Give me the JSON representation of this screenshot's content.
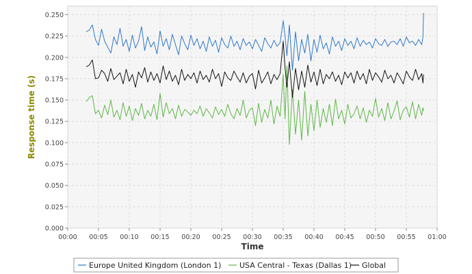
{
  "chart_data": {
    "type": "line",
    "xlabel": "Time",
    "ylabel": "Response time (s)",
    "xlim": [
      0,
      60
    ],
    "ylim": [
      0,
      0.26
    ],
    "grid": true,
    "legend_position": "bottom",
    "x_ticks": [
      0,
      5,
      10,
      15,
      20,
      25,
      30,
      35,
      40,
      45,
      50,
      55,
      60
    ],
    "x_tick_labels": [
      "00:00",
      "00:05",
      "00:10",
      "00:15",
      "00:20",
      "00:25",
      "00:30",
      "00:35",
      "00:40",
      "00:45",
      "00:50",
      "00:55",
      "01:00"
    ],
    "y_ticks": [
      0,
      0.025,
      0.05,
      0.075,
      0.1,
      0.125,
      0.15,
      0.175,
      0.2,
      0.225,
      0.25
    ],
    "y_tick_labels": [
      "0.000",
      "0.025",
      "0.050",
      "0.075",
      "0.100",
      "0.125",
      "0.150",
      "0.175",
      "0.200",
      "0.225",
      "0.250"
    ],
    "colors": {
      "ylabel": "#8b8b00",
      "xlabel": "#333333"
    },
    "series": [
      {
        "name": "Europe United Kingdom (London 1)",
        "color": "#2f78c8",
        "x": [
          3.0,
          3.5,
          4.0,
          4.5,
          5.0,
          5.5,
          6.0,
          6.5,
          7.0,
          7.5,
          8.0,
          8.5,
          9.0,
          9.5,
          10.0,
          10.5,
          11.0,
          11.5,
          12.0,
          12.5,
          13.0,
          13.5,
          14.0,
          14.5,
          15.0,
          15.5,
          16.0,
          16.5,
          17.0,
          17.5,
          18.0,
          18.5,
          19.0,
          19.5,
          20.0,
          20.5,
          21.0,
          21.5,
          22.0,
          22.5,
          23.0,
          23.5,
          24.0,
          24.5,
          25.0,
          25.5,
          26.0,
          26.5,
          27.0,
          27.5,
          28.0,
          28.5,
          29.0,
          29.5,
          30.0,
          30.5,
          31.0,
          31.5,
          32.0,
          32.5,
          33.0,
          33.5,
          34.0,
          34.5,
          35.0,
          35.3,
          35.6,
          36.0,
          36.5,
          37.0,
          37.5,
          38.0,
          38.5,
          39.0,
          39.5,
          40.0,
          40.5,
          41.0,
          41.5,
          42.0,
          42.5,
          43.0,
          43.5,
          44.0,
          44.5,
          45.0,
          45.5,
          46.0,
          46.5,
          47.0,
          47.5,
          48.0,
          48.5,
          49.0,
          49.5,
          50.0,
          50.5,
          51.0,
          51.5,
          52.0,
          52.5,
          53.0,
          53.5,
          54.0,
          54.5,
          55.0,
          55.5,
          56.0,
          56.5,
          57.0,
          57.5,
          57.7,
          57.8
        ],
        "y": [
          0.23,
          0.232,
          0.238,
          0.221,
          0.214,
          0.233,
          0.219,
          0.212,
          0.205,
          0.224,
          0.215,
          0.234,
          0.213,
          0.221,
          0.207,
          0.226,
          0.211,
          0.219,
          0.236,
          0.208,
          0.224,
          0.212,
          0.218,
          0.204,
          0.231,
          0.213,
          0.222,
          0.209,
          0.227,
          0.215,
          0.203,
          0.225,
          0.216,
          0.209,
          0.226,
          0.214,
          0.222,
          0.21,
          0.219,
          0.207,
          0.224,
          0.213,
          0.22,
          0.206,
          0.223,
          0.215,
          0.211,
          0.225,
          0.213,
          0.219,
          0.209,
          0.222,
          0.214,
          0.218,
          0.21,
          0.221,
          0.214,
          0.207,
          0.223,
          0.216,
          0.211,
          0.22,
          0.213,
          0.217,
          0.243,
          0.225,
          0.202,
          0.238,
          0.185,
          0.23,
          0.196,
          0.221,
          0.205,
          0.227,
          0.196,
          0.221,
          0.206,
          0.226,
          0.21,
          0.217,
          0.204,
          0.224,
          0.213,
          0.219,
          0.208,
          0.222,
          0.214,
          0.219,
          0.21,
          0.223,
          0.213,
          0.22,
          0.215,
          0.218,
          0.211,
          0.222,
          0.216,
          0.214,
          0.221,
          0.213,
          0.218,
          0.219,
          0.215,
          0.222,
          0.213,
          0.224,
          0.217,
          0.219,
          0.214,
          0.221,
          0.215,
          0.224,
          0.252
        ]
      },
      {
        "name": "USA Central - Texas (Dallas 1)",
        "color": "#5db646",
        "x": [
          3.0,
          3.5,
          4.0,
          4.5,
          5.0,
          5.5,
          6.0,
          6.5,
          7.0,
          7.5,
          8.0,
          8.5,
          9.0,
          9.5,
          10.0,
          10.5,
          11.0,
          11.5,
          12.0,
          12.5,
          13.0,
          13.5,
          14.0,
          14.5,
          15.0,
          15.5,
          16.0,
          16.5,
          17.0,
          17.5,
          18.0,
          18.5,
          19.0,
          19.5,
          20.0,
          20.5,
          21.0,
          21.5,
          22.0,
          22.5,
          23.0,
          23.5,
          24.0,
          24.5,
          25.0,
          25.5,
          26.0,
          26.5,
          27.0,
          27.5,
          28.0,
          28.5,
          29.0,
          29.5,
          30.0,
          30.5,
          31.0,
          31.5,
          32.0,
          32.5,
          33.0,
          33.5,
          34.0,
          34.5,
          35.0,
          35.3,
          35.6,
          36.0,
          36.5,
          37.0,
          37.5,
          38.0,
          38.5,
          39.0,
          39.5,
          40.0,
          40.5,
          41.0,
          41.5,
          42.0,
          42.5,
          43.0,
          43.5,
          44.0,
          44.5,
          45.0,
          45.5,
          46.0,
          46.5,
          47.0,
          47.5,
          48.0,
          48.5,
          49.0,
          49.5,
          50.0,
          50.5,
          51.0,
          51.5,
          52.0,
          52.5,
          53.0,
          53.5,
          54.0,
          54.5,
          55.0,
          55.5,
          56.0,
          56.5,
          57.0,
          57.5,
          57.7,
          57.8
        ],
        "y": [
          0.148,
          0.153,
          0.155,
          0.134,
          0.138,
          0.129,
          0.144,
          0.133,
          0.15,
          0.13,
          0.138,
          0.127,
          0.147,
          0.131,
          0.143,
          0.126,
          0.14,
          0.132,
          0.146,
          0.128,
          0.138,
          0.131,
          0.145,
          0.127,
          0.158,
          0.13,
          0.147,
          0.134,
          0.14,
          0.128,
          0.144,
          0.131,
          0.139,
          0.136,
          0.132,
          0.138,
          0.134,
          0.143,
          0.131,
          0.14,
          0.135,
          0.129,
          0.142,
          0.133,
          0.139,
          0.131,
          0.145,
          0.134,
          0.128,
          0.14,
          0.132,
          0.15,
          0.129,
          0.138,
          0.141,
          0.12,
          0.146,
          0.124,
          0.139,
          0.129,
          0.15,
          0.122,
          0.143,
          0.131,
          0.18,
          0.128,
          0.19,
          0.098,
          0.162,
          0.11,
          0.15,
          0.103,
          0.16,
          0.108,
          0.145,
          0.114,
          0.15,
          0.118,
          0.14,
          0.124,
          0.145,
          0.12,
          0.151,
          0.128,
          0.138,
          0.122,
          0.145,
          0.129,
          0.134,
          0.143,
          0.128,
          0.141,
          0.124,
          0.138,
          0.131,
          0.152,
          0.13,
          0.14,
          0.126,
          0.147,
          0.128,
          0.137,
          0.149,
          0.127,
          0.138,
          0.142,
          0.13,
          0.148,
          0.128,
          0.145,
          0.132,
          0.141,
          0.137
        ]
      },
      {
        "name": "Global",
        "color": "#111111",
        "x": [
          3.0,
          3.5,
          4.0,
          4.5,
          5.0,
          5.5,
          6.0,
          6.5,
          7.0,
          7.5,
          8.0,
          8.5,
          9.0,
          9.5,
          10.0,
          10.5,
          11.0,
          11.5,
          12.0,
          12.5,
          13.0,
          13.5,
          14.0,
          14.5,
          15.0,
          15.5,
          16.0,
          16.5,
          17.0,
          17.5,
          18.0,
          18.5,
          19.0,
          19.5,
          20.0,
          20.5,
          21.0,
          21.5,
          22.0,
          22.5,
          23.0,
          23.5,
          24.0,
          24.5,
          25.0,
          25.5,
          26.0,
          26.5,
          27.0,
          27.5,
          28.0,
          28.5,
          29.0,
          29.5,
          30.0,
          30.5,
          31.0,
          31.5,
          32.0,
          32.5,
          33.0,
          33.5,
          34.0,
          34.5,
          35.0,
          35.3,
          35.6,
          36.0,
          36.5,
          37.0,
          37.5,
          38.0,
          38.5,
          39.0,
          39.5,
          40.0,
          40.5,
          41.0,
          41.5,
          42.0,
          42.5,
          43.0,
          43.5,
          44.0,
          44.5,
          45.0,
          45.5,
          46.0,
          46.5,
          47.0,
          47.5,
          48.0,
          48.5,
          49.0,
          49.5,
          50.0,
          50.5,
          51.0,
          51.5,
          52.0,
          52.5,
          53.0,
          53.5,
          54.0,
          54.5,
          55.0,
          55.5,
          56.0,
          56.5,
          57.0,
          57.5,
          57.7,
          57.8
        ],
        "y": [
          0.189,
          0.191,
          0.197,
          0.175,
          0.176,
          0.185,
          0.181,
          0.172,
          0.187,
          0.174,
          0.178,
          0.182,
          0.169,
          0.186,
          0.172,
          0.18,
          0.165,
          0.183,
          0.176,
          0.188,
          0.171,
          0.183,
          0.173,
          0.181,
          0.17,
          0.19,
          0.174,
          0.184,
          0.172,
          0.179,
          0.168,
          0.186,
          0.173,
          0.18,
          0.175,
          0.182,
          0.17,
          0.184,
          0.174,
          0.179,
          0.171,
          0.186,
          0.175,
          0.181,
          0.166,
          0.183,
          0.176,
          0.173,
          0.184,
          0.177,
          0.171,
          0.182,
          0.17,
          0.178,
          0.181,
          0.163,
          0.185,
          0.17,
          0.176,
          0.183,
          0.169,
          0.18,
          0.174,
          0.181,
          0.219,
          0.188,
          0.165,
          0.195,
          0.153,
          0.187,
          0.162,
          0.184,
          0.165,
          0.191,
          0.171,
          0.183,
          0.167,
          0.186,
          0.169,
          0.18,
          0.175,
          0.183,
          0.172,
          0.179,
          0.168,
          0.183,
          0.176,
          0.182,
          0.17,
          0.184,
          0.174,
          0.181,
          0.169,
          0.186,
          0.173,
          0.182,
          0.177,
          0.171,
          0.185,
          0.175,
          0.179,
          0.17,
          0.182,
          0.176,
          0.169,
          0.184,
          0.177,
          0.173,
          0.186,
          0.174,
          0.181,
          0.17,
          0.18
        ]
      }
    ]
  }
}
